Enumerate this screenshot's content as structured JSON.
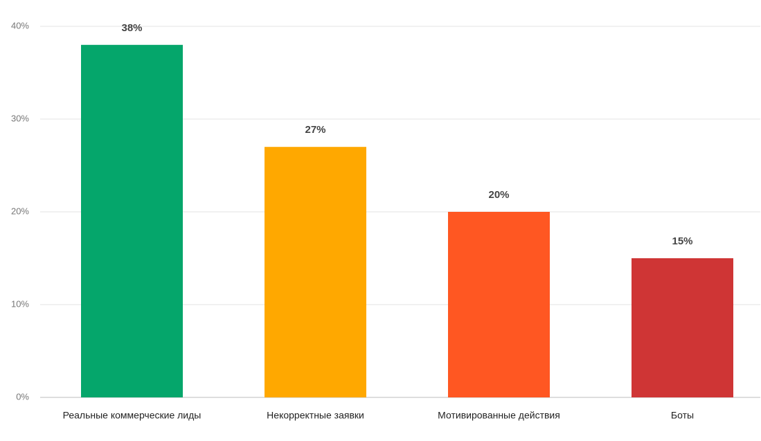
{
  "chart_data": {
    "type": "bar",
    "categories": [
      "Реальные коммерческие лиды",
      "Некорректные заявки",
      "Мотивированные действия",
      "Боты"
    ],
    "values": [
      38,
      27,
      20,
      15
    ],
    "value_labels": [
      "38%",
      "27%",
      "20%",
      "15%"
    ],
    "colors": [
      "#05a66b",
      "#ffa800",
      "#ff5722",
      "#cf3535"
    ],
    "ylim": [
      0,
      40
    ],
    "yticks": [
      {
        "value": 0,
        "label": "0%"
      },
      {
        "value": 10,
        "label": "10%"
      },
      {
        "value": 20,
        "label": "20%"
      },
      {
        "value": 30,
        "label": "30%"
      },
      {
        "value": 40,
        "label": "40%"
      }
    ],
    "grid": true
  }
}
